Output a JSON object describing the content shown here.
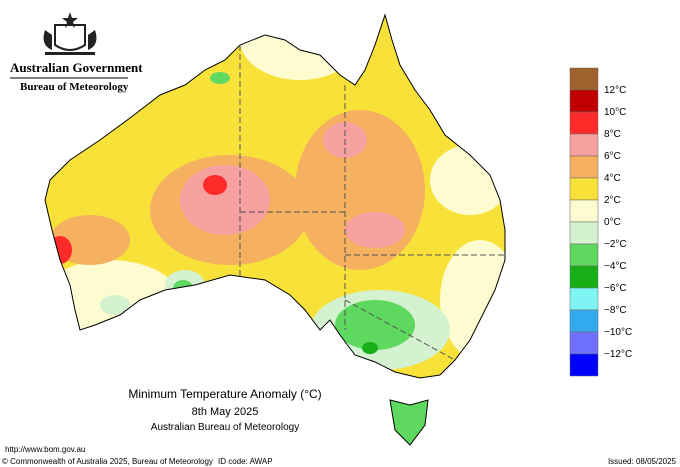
{
  "header": {
    "government": "Australian Government",
    "agency": "Bureau of Meteorology"
  },
  "map": {
    "title": "Minimum Temperature Anomaly (°C)",
    "date": "8th May 2025",
    "source": "Australian Bureau of Meteorology"
  },
  "legend": {
    "labels": [
      "12°C",
      "10°C",
      "8°C",
      "6°C",
      "4°C",
      "2°C",
      "0°C",
      "−2°C",
      "−4°C",
      "−6°C",
      "−8°C",
      "−10°C",
      "−12°C"
    ],
    "colors": [
      "#a0622d",
      "#c00000",
      "#ff2a2a",
      "#f7a0a0",
      "#f5b060",
      "#f8e23a",
      "#fdfbd0",
      "#d4f2cf",
      "#5fd85f",
      "#16b016",
      "#7ff4f4",
      "#33aaee",
      "#7070ff",
      "#0000ff"
    ]
  },
  "footer": {
    "url": "http://www.bom.gov.au",
    "copyright": "© Commonwealth of Australia 2025, Bureau of Meteorology",
    "id_code": "ID code: AWAP",
    "issued": "Issued: 08/05/2025"
  }
}
